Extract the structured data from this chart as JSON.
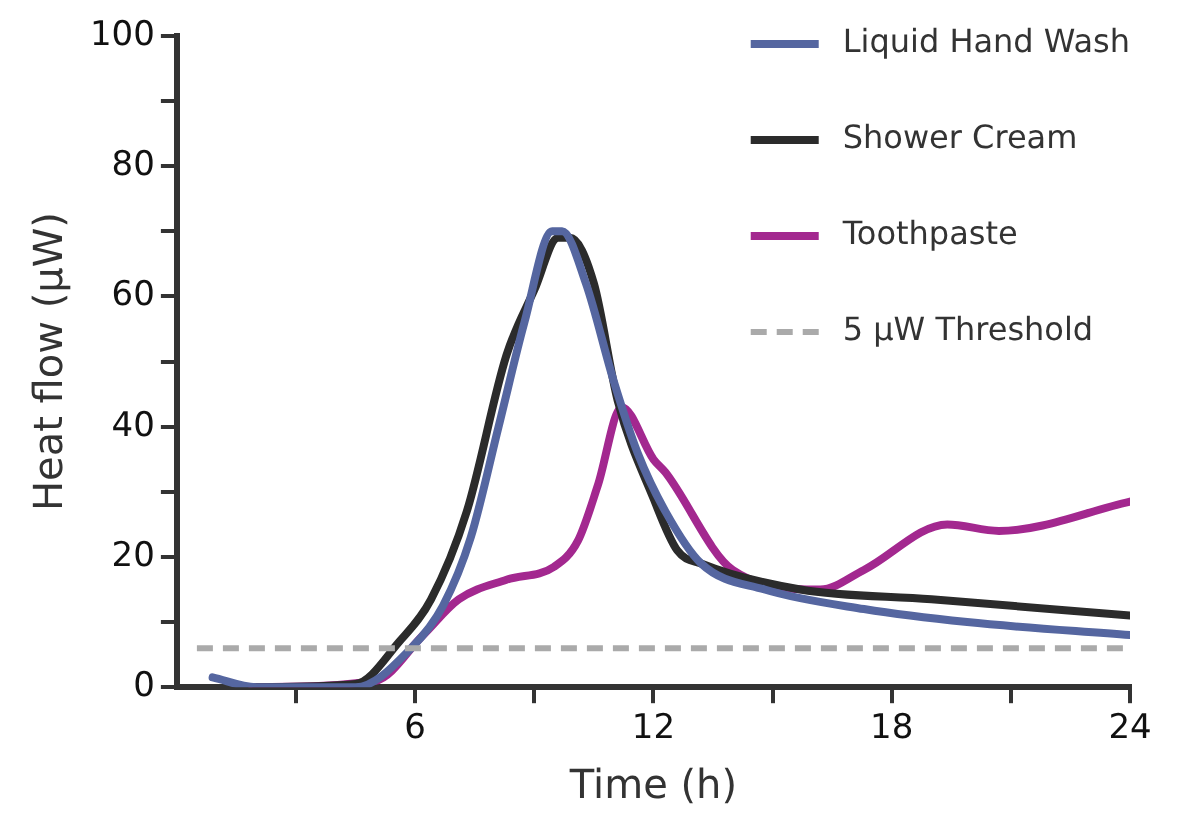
{
  "chart_data": {
    "type": "line",
    "xlabel": "Time (h)",
    "ylabel": "Heat flow (µW)",
    "xlim": [
      0,
      24
    ],
    "ylim": [
      0,
      100
    ],
    "xticks": [
      {
        "value": 3,
        "label": null
      },
      6,
      {
        "value": 9,
        "label": null
      },
      12,
      {
        "value": 15,
        "label": null
      },
      18,
      {
        "value": 21,
        "label": null
      },
      24
    ],
    "yticks": [
      0,
      {
        "value": 10,
        "label": null
      },
      20,
      {
        "value": 30,
        "label": null
      },
      40,
      {
        "value": 50,
        "label": null
      },
      60,
      {
        "value": 70,
        "label": null
      },
      80,
      {
        "value": 90,
        "label": null
      },
      100
    ],
    "grid": false,
    "legend": "top right",
    "marker": "none",
    "line_style": "solid",
    "series": [
      {
        "name": "Liquid Hand Wash",
        "color": "#5566a0",
        "x": [
          0.9,
          2,
          4.5,
          5.9,
          6.7,
          7.4,
          8.1,
          8.75,
          9.45,
          9.7,
          10.3,
          11,
          11.6,
          12.3,
          13.2,
          14.8,
          17.3,
          19.9,
          24
        ],
        "values": [
          1.5,
          0,
          0,
          6,
          12.5,
          23,
          40,
          56,
          70,
          70,
          62,
          47,
          36,
          27,
          19,
          15,
          12,
          10,
          8
        ]
      },
      {
        "name": "Shower Cream",
        "color": "#2b2b2b",
        "x": [
          2,
          4.5,
          5.6,
          6.4,
          7.3,
          8.3,
          9,
          9.6,
          9.9,
          10.5,
          11.1,
          12,
          12.6,
          13.2,
          15.7,
          19,
          24
        ],
        "values": [
          0,
          0.5,
          7,
          13.5,
          27,
          51,
          61,
          69,
          69,
          62,
          44,
          29,
          21,
          19,
          15,
          13.5,
          11
        ]
      },
      {
        "name": "Toothpaste",
        "color": "#a3288f",
        "x": [
          1.9,
          5,
          6.2,
          7.1,
          8.3,
          9.5,
          10.1,
          10.6,
          11.2,
          12,
          12.3,
          14,
          16.2,
          17.3,
          19.4,
          20.7,
          24
        ],
        "values": [
          0,
          1,
          8,
          13.5,
          16.5,
          18.5,
          22.5,
          31,
          43,
          35,
          33,
          18,
          15,
          18,
          25,
          24,
          28.5
        ]
      }
    ],
    "ref_lines": [
      {
        "axis": "y",
        "value": 6,
        "label": "5 µW Threshold",
        "color": "#aaaaaa",
        "line_style": "dashed"
      }
    ]
  }
}
